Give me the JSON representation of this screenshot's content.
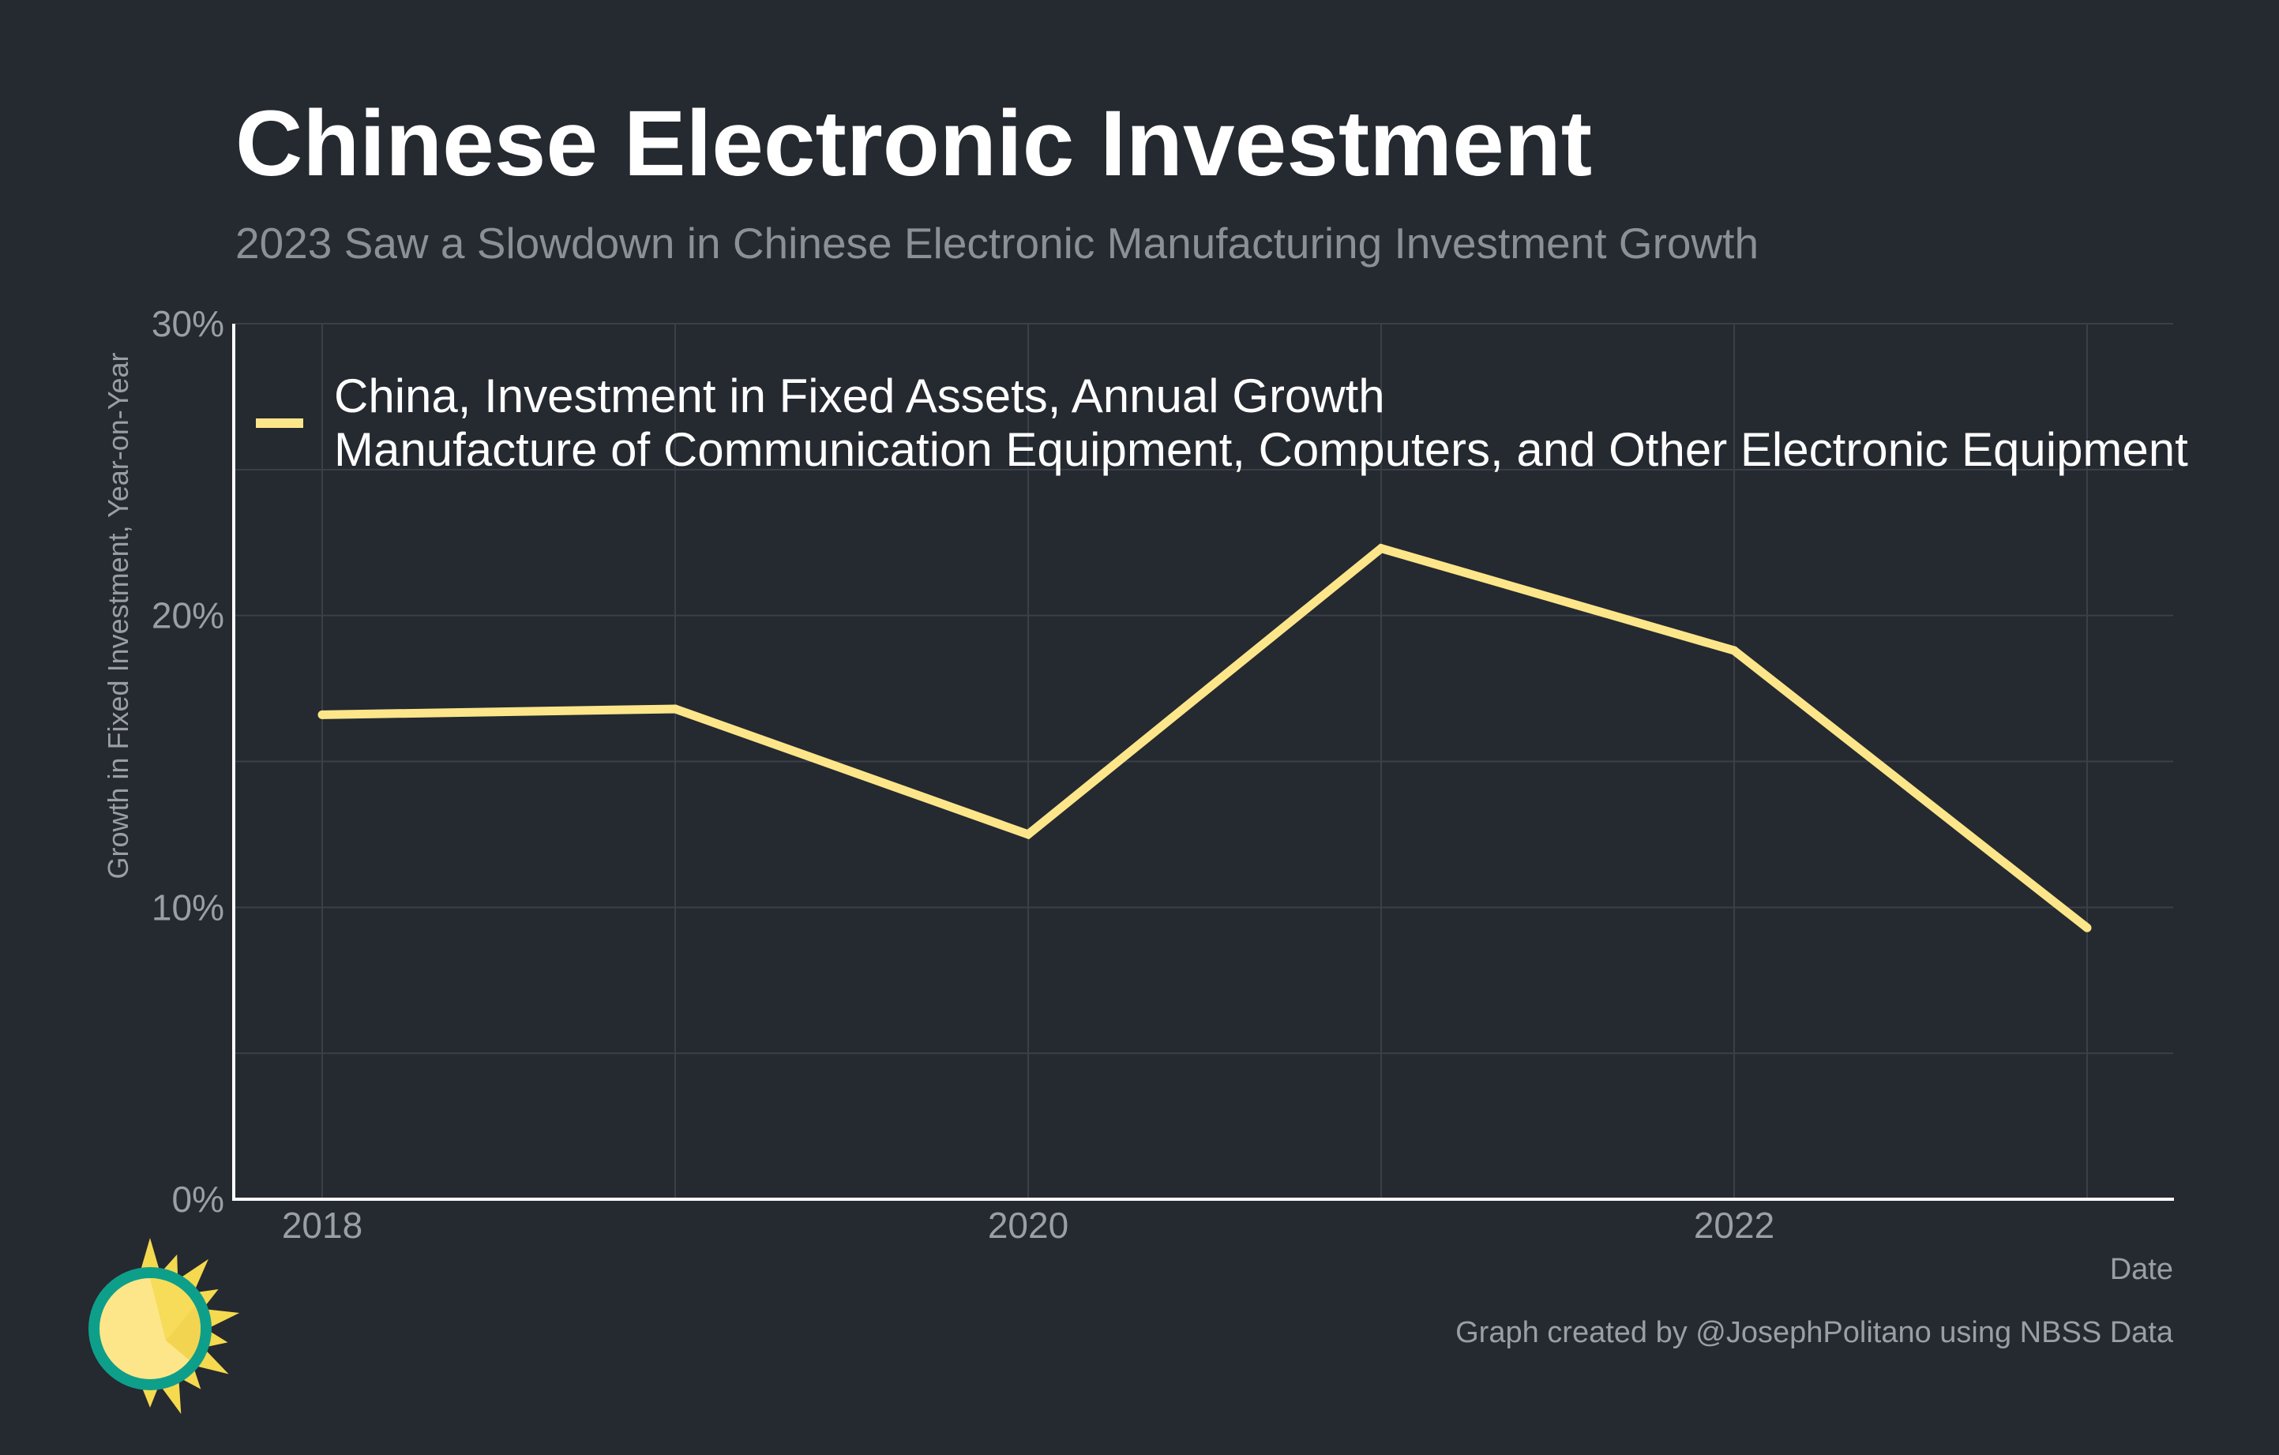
{
  "colors": {
    "background": "#252930",
    "series_line": "#fde68a",
    "grid": "#3b4048",
    "axis": "#ffffff",
    "logo_ring": "#0e9f8a",
    "logo_sun": "#fde68a",
    "logo_rays": "#f5d94f"
  },
  "logo": {
    "icon": "sun-logo-icon"
  },
  "chart_data": {
    "type": "line",
    "title": "Chinese Electronic Investment",
    "subtitle": "2023 Saw a Slowdown in Chinese Electronic Manufacturing Investment Growth",
    "xlabel": "Date",
    "ylabel": "Growth in Fixed Investment, Year-on-Year",
    "x": [
      "2018",
      "2019",
      "2020",
      "2021",
      "2022",
      "2023"
    ],
    "xticks": [
      "2018",
      "2020",
      "2022"
    ],
    "ylim": [
      0,
      30
    ],
    "yticks": [
      "0%",
      "10%",
      "20%",
      "30%"
    ],
    "grid": true,
    "legend_position": "top-left",
    "series": [
      {
        "name_line1": "China, Investment in Fixed Assets, Annual Growth",
        "name_line2": "Manufacture of Communication Equipment, Computers, and Other Electronic Equipment",
        "values": [
          16.6,
          16.8,
          12.5,
          22.3,
          18.8,
          9.3
        ]
      }
    ],
    "credit": "Graph created by @JosephPolitano using NBSS Data"
  }
}
